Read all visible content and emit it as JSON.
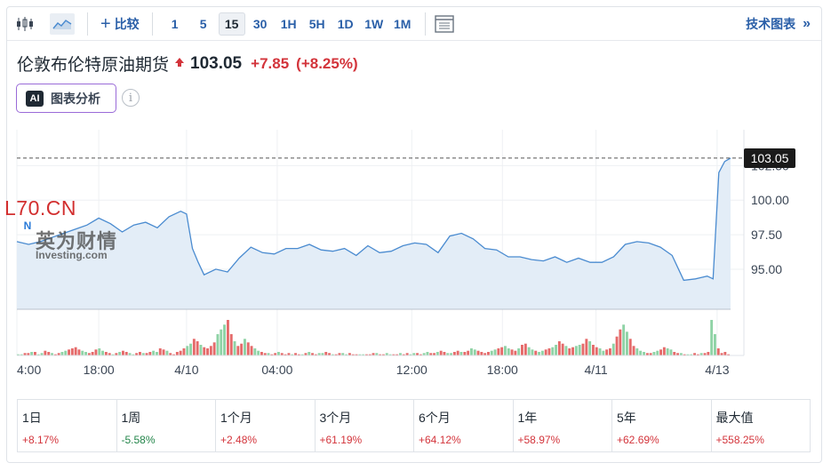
{
  "toolbar": {
    "compare_label": "比较",
    "intervals": [
      "1",
      "5",
      "15",
      "30",
      "1H",
      "5H",
      "1D",
      "1W",
      "1M"
    ],
    "active_interval": "15",
    "tech_chart_label": "技术图表",
    "icons": [
      "candlestick-icon",
      "area-chart-icon",
      "plus-icon",
      "fullscreen-icon",
      "double-chevron-right-icon"
    ]
  },
  "instrument": {
    "name": "伦敦布伦特原油期货",
    "price": "103.05",
    "change": "+7.85",
    "change_pct": "(+8.25%)",
    "direction_icon": "up-arrow-icon"
  },
  "ai_button": {
    "badge": "AI",
    "label": "图表分析"
  },
  "info_icon": "i",
  "watermarks": {
    "site": "L70.CN",
    "badge": "N",
    "brand_cn": "英为财情",
    "brand_en": "Investing.com"
  },
  "chart_data": {
    "type": "area",
    "title": "",
    "xlabel": "",
    "ylabel": "",
    "x_ticks": [
      "4:00",
      "18:00",
      "4/10",
      "04:00",
      "12:00",
      "18:00",
      "4/11",
      "4/13"
    ],
    "x_tick_pos": [
      0,
      14,
      29,
      44.5,
      67.5,
      83,
      99,
      119.7
    ],
    "y_ticks": [
      "95.00",
      "97.50",
      "100.00",
      "102.50"
    ],
    "y_tick_values": [
      95,
      97.5,
      100,
      102.5
    ],
    "ylim": [
      92.1,
      105.1
    ],
    "last_price": "103.05",
    "last_price_value": 103.05,
    "line_color": "#4a8bd0",
    "fill_color": "#e3edf7",
    "series": [
      {
        "x": [
          0,
          2,
          4,
          6,
          8,
          10,
          12,
          14,
          16,
          18,
          20,
          22,
          24,
          26,
          28,
          29,
          30,
          31,
          32,
          34,
          36,
          38,
          40,
          42,
          44,
          46,
          48,
          50,
          52,
          54,
          56,
          58,
          60,
          62,
          64,
          66,
          68,
          70,
          72,
          74,
          76,
          78,
          80,
          82,
          84,
          86,
          88,
          90,
          92,
          94,
          96,
          98,
          100,
          102,
          104,
          106,
          108,
          110,
          112,
          114,
          116,
          117,
          118,
          119,
          120,
          121,
          122
        ],
        "y": [
          97.0,
          96.8,
          97.0,
          97.3,
          97.6,
          97.9,
          98.2,
          98.7,
          98.3,
          97.7,
          98.2,
          98.4,
          98.0,
          98.8,
          99.2,
          99.0,
          96.5,
          95.5,
          94.6,
          95.0,
          94.8,
          95.8,
          96.6,
          96.2,
          96.1,
          96.5,
          96.5,
          96.8,
          96.4,
          96.3,
          96.5,
          96.0,
          96.7,
          96.2,
          96.3,
          96.7,
          96.9,
          96.8,
          96.2,
          97.4,
          97.6,
          97.2,
          96.5,
          96.4,
          95.9,
          95.9,
          95.7,
          95.6,
          95.9,
          95.5,
          95.8,
          95.5,
          95.5,
          95.9,
          96.8,
          97.0,
          96.9,
          96.6,
          96.0,
          94.2,
          94.3,
          94.4,
          94.5,
          94.3,
          102.0,
          102.8,
          103.05
        ]
      }
    ],
    "volume": {
      "up_color": "#8fd3a6",
      "down_color": "#e56a6a",
      "values": [
        1,
        1,
        2,
        2,
        3,
        3,
        1,
        2,
        4,
        3,
        2,
        1,
        2,
        3,
        4,
        5,
        6,
        7,
        5,
        4,
        3,
        2,
        3,
        5,
        6,
        4,
        3,
        2,
        1,
        2,
        3,
        4,
        3,
        2,
        1,
        2,
        3,
        2,
        2,
        3,
        4,
        3,
        6,
        5,
        4,
        2,
        1,
        3,
        4,
        6,
        8,
        10,
        14,
        12,
        9,
        7,
        6,
        8,
        11,
        18,
        22,
        26,
        30,
        18,
        12,
        8,
        10,
        14,
        11,
        8,
        6,
        4,
        3,
        2,
        2,
        1,
        2,
        3,
        2,
        1,
        2,
        1,
        2,
        1,
        1,
        2,
        3,
        2,
        1,
        2,
        2,
        3,
        2,
        1,
        1,
        2,
        2,
        1,
        2,
        1,
        1,
        1,
        1,
        1,
        1,
        2,
        2,
        1,
        1,
        2,
        1,
        1,
        1,
        2,
        1,
        2,
        1,
        2,
        2,
        1,
        2,
        3,
        2,
        2,
        3,
        4,
        3,
        2,
        2,
        3,
        4,
        3,
        3,
        4,
        6,
        5,
        4,
        3,
        2,
        3,
        4,
        5,
        6,
        7,
        8,
        6,
        5,
        4,
        6,
        9,
        10,
        7,
        5,
        4,
        3,
        4,
        5,
        6,
        7,
        9,
        12,
        10,
        8,
        6,
        7,
        8,
        9,
        10,
        14,
        12,
        9,
        7,
        6,
        4,
        5,
        6,
        10,
        16,
        22,
        26,
        20,
        14,
        8,
        6,
        4,
        3,
        2,
        2,
        3,
        4,
        5,
        7,
        6,
        5,
        3,
        2,
        2,
        1,
        1,
        1,
        2,
        1,
        2,
        2,
        3,
        30,
        18,
        6,
        2,
        3,
        1
      ],
      "directions": "uudduduuddudduudddduuddduuddududduuddudduudduddddduuddudddduuudduddudduuddudduddduddududduuddudduuddduudddudduuddudduudduuddudduuddudduudddduudduuddudduuduudduuddudduuddudduuddudduudduuudduudd"
    }
  },
  "performance": [
    {
      "label": "1日",
      "value": "+8.17%",
      "dir": "pos"
    },
    {
      "label": "1周",
      "value": "-5.58%",
      "dir": "neg"
    },
    {
      "label": "1个月",
      "value": "+2.48%",
      "dir": "pos"
    },
    {
      "label": "3个月",
      "value": "+61.19%",
      "dir": "pos"
    },
    {
      "label": "6个月",
      "value": "+64.12%",
      "dir": "pos"
    },
    {
      "label": "1年",
      "value": "+58.97%",
      "dir": "pos"
    },
    {
      "label": "5年",
      "value": "+62.69%",
      "dir": "pos"
    },
    {
      "label": "最大值",
      "value": "+558.25%",
      "dir": "pos"
    }
  ]
}
